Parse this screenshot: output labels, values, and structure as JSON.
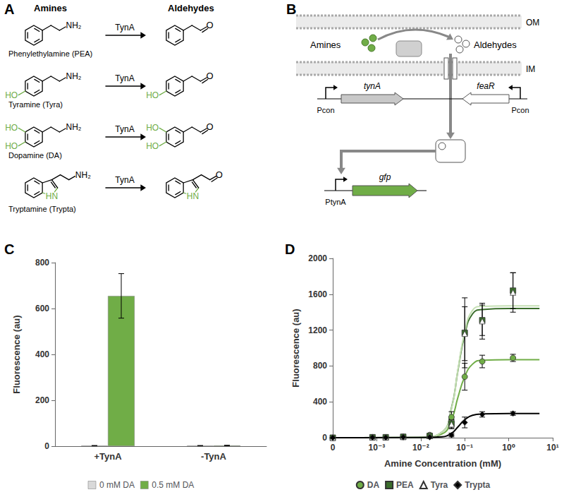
{
  "panels": [
    "A",
    "B",
    "C",
    "D"
  ],
  "reactions": {
    "headers": [
      "Amines",
      "Aldehydes"
    ],
    "enzyme": "TynA",
    "amine_group": "NH₂",
    "aldehyde_group": "O",
    "rows": [
      {
        "name": "Phenylethylamine (PEA)",
        "substituents": []
      },
      {
        "name": "Tyramine (Tyra)",
        "substituents": [
          "HO"
        ]
      },
      {
        "name": "Dopamine (DA)",
        "substituents": [
          "HO",
          "HO"
        ]
      },
      {
        "name": "Tryptamine (Trypta)",
        "substituents": [],
        "ring_heteroatom": "HN"
      }
    ]
  },
  "schematic": {
    "membranes": [
      "OM",
      "IM"
    ],
    "substrate": "Amines",
    "product": "Aldehydes",
    "genes": [
      "tynA",
      "feaR",
      "gfp"
    ],
    "promoters": [
      "Pcon",
      "Pcon",
      "PtynA"
    ]
  },
  "chart_data": [
    {
      "type": "bar",
      "categories": [
        "+TynA",
        "-TynA"
      ],
      "ylabel": "Fluorescence (au)",
      "ylim": [
        0,
        800
      ],
      "yticks": [
        0,
        200,
        400,
        600,
        800
      ],
      "grid": false,
      "legend": "bottom",
      "series": [
        {
          "name": "0 mM DA",
          "color": "#d9d9d9",
          "values": [
            2,
            2
          ],
          "errors": [
            1,
            1
          ]
        },
        {
          "name": "0.5 mM DA",
          "color": "#70ad47",
          "values": [
            655,
            3
          ],
          "errors": [
            97,
            1
          ]
        }
      ]
    },
    {
      "type": "scatter",
      "xlabel": "Amine Concentration (mM)",
      "ylabel": "Fluorescence (au)",
      "log": "x",
      "x": [
        0.0001,
        0.0008,
        0.0016,
        0.004,
        0.016,
        0.05,
        0.1,
        0.25,
        1.25
      ],
      "xlim": [
        0.0001,
        10
      ],
      "xticks": [
        {
          "value": 0.0001,
          "label": "0"
        },
        {
          "value": 0.001,
          "label": "10⁻³"
        },
        {
          "value": 0.01,
          "label": "10⁻²"
        },
        {
          "value": 0.1,
          "label": "10⁻¹"
        },
        {
          "value": 1,
          "label": "10⁰"
        },
        {
          "value": 10,
          "label": "10¹"
        }
      ],
      "ylim": [
        0,
        2000
      ],
      "yticks": [
        0,
        400,
        800,
        1200,
        1600,
        2000
      ],
      "grid": false,
      "legend": "bottom",
      "series": [
        {
          "name": "DA",
          "color": "#70ad47",
          "marker": "circle",
          "values": [
            0,
            5,
            5,
            10,
            30,
            230,
            680,
            850,
            890
          ],
          "errors": [
            0,
            5,
            5,
            5,
            10,
            60,
            150,
            70,
            40
          ],
          "fit": {
            "color": "#70ad47",
            "x": [
              0.0001,
              0.01,
              0.03,
              0.05,
              0.07,
              0.1,
              0.15,
              0.25,
              1,
              5
            ],
            "values": [
              0,
              2,
              40,
              200,
              450,
              680,
              820,
              865,
              870,
              870
            ]
          }
        },
        {
          "name": "PEA",
          "color": "#3b6e2c",
          "marker": "square",
          "values": [
            0,
            5,
            5,
            10,
            20,
            160,
            1170,
            1310,
            1640
          ],
          "errors": [
            0,
            5,
            5,
            5,
            10,
            50,
            390,
            170,
            200
          ],
          "fit": {
            "color": "#3b6e2c",
            "x": [
              0.0001,
              0.01,
              0.03,
              0.05,
              0.07,
              0.1,
              0.15,
              0.25,
              1,
              5
            ],
            "values": [
              0,
              3,
              60,
              330,
              750,
              1150,
              1380,
              1430,
              1440,
              1440
            ]
          }
        },
        {
          "name": "Tyra",
          "color": "#ffffff",
          "marker": "triangle",
          "values": [
            0,
            5,
            5,
            10,
            20,
            150,
            1160,
            1300,
            1620
          ],
          "errors": [
            0,
            5,
            5,
            5,
            10,
            50,
            300,
            200,
            220
          ],
          "fit": {
            "color": "#c5e0b4",
            "x": [
              0.0001,
              0.01,
              0.03,
              0.05,
              0.07,
              0.1,
              0.15,
              0.25,
              1,
              5
            ],
            "values": [
              0,
              3,
              60,
              320,
              760,
              1180,
              1420,
              1465,
              1470,
              1470
            ]
          }
        },
        {
          "name": "Trypta",
          "color": "#000000",
          "marker": "diamond",
          "values": [
            0,
            2,
            2,
            5,
            5,
            30,
            170,
            260,
            270
          ],
          "errors": [
            0,
            2,
            2,
            3,
            5,
            20,
            60,
            30,
            20
          ],
          "fit": {
            "color": "#000000",
            "x": [
              0.0001,
              0.01,
              0.03,
              0.05,
              0.07,
              0.1,
              0.15,
              0.25,
              1,
              5
            ],
            "values": [
              0,
              1,
              10,
              50,
              120,
              200,
              250,
              265,
              270,
              270
            ]
          }
        }
      ]
    }
  ]
}
